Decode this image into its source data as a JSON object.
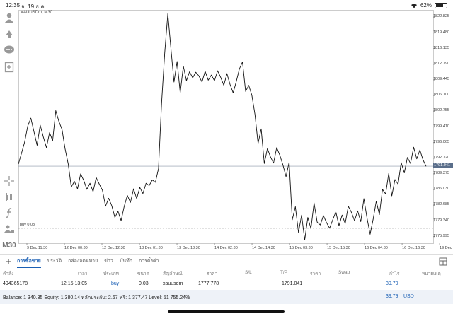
{
  "statusbar": {
    "time": "12:35",
    "date": "จ. 19 ธ.ค.",
    "battery": "62%"
  },
  "toolbar": {
    "icons": [
      "trader-icon",
      "deal-icon",
      "chat-icon",
      "new-order-icon",
      "crosshair-icon",
      "indicators-icon",
      "function-icon",
      "objects-icon"
    ],
    "timeframe": "M30"
  },
  "chart": {
    "symbol_label": "XAUUSDm, M30",
    "price_ticks": [
      "1822.825",
      "1819.480",
      "1816.135",
      "1812.790",
      "1809.445",
      "1806.100",
      "1802.755",
      "1799.410",
      "1796.065",
      "1792.720",
      "1789.375",
      "1786.030",
      "1782.685",
      "1779.340",
      "1775.995"
    ],
    "current_price": "1791.041",
    "buy_line_label": "buy 0.03",
    "time_ticks": [
      "9 Dec 11:30",
      "12 Dec 00:30",
      "12 Dec 12:30",
      "13 Dec 01:30",
      "13 Dec 13:30",
      "14 Dec 02:30",
      "14 Dec 14:30",
      "15 Dec 03:30",
      "15 Dec 15:30",
      "16 Dec 04:30",
      "16 Dec 16:30",
      "19 Dec 05:30"
    ],
    "line_color": "#111111"
  },
  "chart_data": {
    "type": "line",
    "title": "XAUUSDm, M30",
    "xlabel": "",
    "ylabel": "",
    "ylim": [
      1774.6,
      1824.4
    ],
    "current_price": 1791.041,
    "buy_price": 1777.778,
    "series": [
      {
        "values": [
          1791.5,
          1793.8,
          1796.2,
          1799.6,
          1801.3,
          1798.4,
          1795.5,
          1799.8,
          1797.3,
          1795.0,
          1798.2,
          1796.5,
          1802.9,
          1800.6,
          1798.9,
          1794.7,
          1791.5,
          1786.6,
          1787.8,
          1786.2,
          1789.4,
          1788.0,
          1786.1,
          1787.4,
          1785.6,
          1788.6,
          1787.2,
          1785.9,
          1782.5,
          1784.2,
          1782.6,
          1780.1,
          1781.4,
          1779.4,
          1782.5,
          1784.8,
          1783.3,
          1786.2,
          1784.1,
          1786.5,
          1785.2,
          1787.4,
          1786.9,
          1788.1,
          1787.6,
          1790.5,
          1804.6,
          1815.2,
          1823.6,
          1816.1,
          1809.0,
          1813.4,
          1806.7,
          1812.4,
          1809.3,
          1811.2,
          1809.9,
          1811.1,
          1810.3,
          1809.0,
          1811.3,
          1809.4,
          1810.5,
          1809.3,
          1811.4,
          1810.0,
          1808.3,
          1810.8,
          1808.5,
          1806.7,
          1809.1,
          1811.8,
          1813.3,
          1807.0,
          1808.3,
          1806.2,
          1802.1,
          1795.9,
          1799.0,
          1791.6,
          1794.8,
          1793.0,
          1791.7,
          1795.0,
          1793.4,
          1791.3,
          1788.8,
          1791.9,
          1779.6,
          1782.4,
          1776.9,
          1780.6,
          1775.3,
          1780.1,
          1777.7,
          1783.2,
          1779.1,
          1778.5,
          1780.5,
          1779.0,
          1777.8,
          1779.6,
          1781.3,
          1778.3,
          1780.6,
          1778.8,
          1782.5,
          1781.2,
          1779.4,
          1781.5,
          1779.2,
          1784.1,
          1780.0,
          1776.5,
          1779.8,
          1783.6,
          1780.7,
          1786.1,
          1785.1,
          1789.5,
          1784.7,
          1788.2,
          1787.2,
          1791.8,
          1789.6,
          1792.9,
          1791.6,
          1795.1,
          1792.6,
          1794.5,
          1792.4,
          1791.0
        ]
      }
    ],
    "grid": true
  },
  "tabs": {
    "items": [
      "การซื้อขาย",
      "ประวัติ",
      "กล่องจดหมาย",
      "ข่าว",
      "บันทึก",
      "การตั้งค่า"
    ],
    "active": 0
  },
  "table": {
    "headers": [
      "คำสั่ง",
      "เวลา",
      "ประเภท",
      "ขนาด",
      "สัญลักษณ์",
      "ราคา",
      "S/L",
      "T/P",
      "ราคา",
      "Swap",
      "กำไร",
      "หมายเหตุ"
    ],
    "row": {
      "order": "494365178",
      "time": "12.15 13:05",
      "type": "buy",
      "size": "0.03",
      "symbol": "xauusdm",
      "open_price": "1777.778",
      "sl": "",
      "tp": "",
      "price": "1791.041",
      "swap": "",
      "profit": "39.79",
      "comment": ""
    }
  },
  "balance": {
    "text": "Balance: 1 340.35 Equity: 1 380.14 หลักประกัน: 2.67 ฟรี: 1 377.47 Level: 51 755.24%",
    "profit": "39.79",
    "currency": "USD"
  }
}
